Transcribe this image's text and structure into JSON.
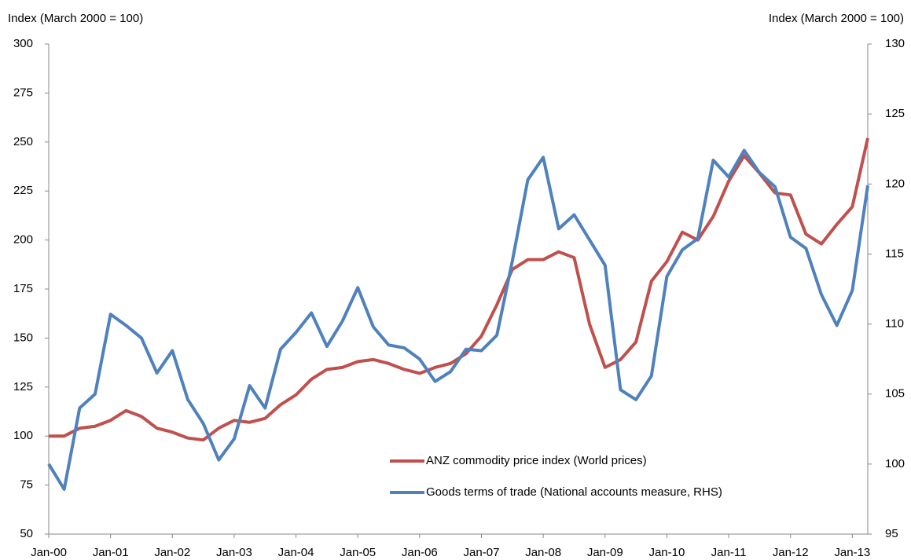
{
  "chart_data": {
    "type": "line",
    "y_label": "Index (March 2000 = 100)",
    "y2_label": "Index (March 2000 = 100)",
    "categories": [
      "Jan-00",
      null,
      null,
      null,
      "Jan-01",
      null,
      null,
      null,
      "Jan-02",
      null,
      null,
      null,
      "Jan-03",
      null,
      null,
      null,
      "Jan-04",
      null,
      null,
      null,
      "Jan-05",
      null,
      null,
      null,
      "Jan-06",
      null,
      null,
      null,
      "Jan-07",
      null,
      null,
      null,
      "Jan-08",
      null,
      null,
      null,
      "Jan-09",
      null,
      null,
      null,
      "Jan-10",
      null,
      null,
      null,
      "Jan-11",
      null,
      null,
      null,
      "Jan-12",
      null,
      null,
      null,
      "Jan-13",
      null
    ],
    "ylim": [
      50,
      300
    ],
    "yticks": [
      50,
      75,
      100,
      125,
      150,
      175,
      200,
      225,
      250,
      275,
      300
    ],
    "y2lim": [
      95,
      130
    ],
    "y2ticks": [
      95,
      100,
      105,
      110,
      115,
      120,
      125,
      130
    ],
    "legend": "lower-center",
    "series": [
      {
        "name": "ANZ commodity price index (World prices)",
        "color": "#c0504d",
        "values": [
          100,
          100,
          104,
          105,
          108,
          113,
          110,
          104,
          102,
          99,
          98,
          104,
          108,
          107,
          109,
          116,
          121,
          129,
          134,
          135,
          138,
          139,
          137,
          134,
          132,
          135,
          137,
          142,
          151,
          167,
          185,
          190,
          190,
          194,
          191,
          157,
          135,
          139,
          148,
          179,
          189,
          204,
          200,
          212,
          230,
          243,
          234,
          224,
          223,
          203,
          198,
          208,
          217,
          252
        ]
      },
      {
        "name": "Goods terms of trade (National accounts measure, RHS)",
        "color": "#4f81bd",
        "axis": "y2",
        "values": [
          100,
          98.2,
          104,
          105,
          110.7,
          109.9,
          109,
          106.5,
          108.1,
          104.6,
          102.9,
          100.3,
          101.8,
          105.6,
          104,
          108.2,
          109.4,
          110.8,
          108.4,
          110.2,
          112.6,
          109.8,
          108.5,
          108.3,
          107.5,
          105.9,
          106.6,
          108.2,
          108.1,
          109.2,
          114.5,
          120.3,
          121.9,
          116.8,
          117.8,
          116,
          114.2,
          105.3,
          104.6,
          106.3,
          113.4,
          115.3,
          116.1,
          121.7,
          120.5,
          122.4,
          120.8,
          119.8,
          116.2,
          115.4,
          112.1,
          109.9,
          112.4,
          119.9
        ]
      }
    ]
  }
}
